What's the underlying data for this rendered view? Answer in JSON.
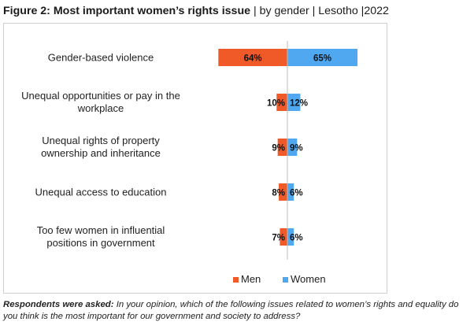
{
  "header": {
    "title_bold": "Figure 2: Most important women’s rights issue",
    "title_rest": " | by gender | Lesotho |2022"
  },
  "footnote": {
    "lead": "Respondents were asked:",
    "text": " In your opinion, which of the following issues related to women’s rights and equality do you think is the most important for our government and society to address?"
  },
  "chart_data": {
    "type": "bar",
    "orientation": "horizontal-diverging",
    "categories": [
      [
        "Gender-based violence"
      ],
      [
        "Unequal opportunities or pay in the",
        "workplace"
      ],
      [
        "Unequal rights of property",
        "ownership and inheritance"
      ],
      [
        "Unequal access to education"
      ],
      [
        "Too few women in influential",
        "positions in government"
      ]
    ],
    "series": [
      {
        "name": "Men",
        "color": "#f05a28",
        "direction": "left",
        "values": [
          64,
          10,
          9,
          8,
          7
        ]
      },
      {
        "name": "Women",
        "color": "#4fa8f0",
        "direction": "right",
        "values": [
          65,
          12,
          9,
          6,
          6
        ]
      }
    ],
    "value_suffix": "%",
    "legend_position": "bottom",
    "grid": false
  }
}
